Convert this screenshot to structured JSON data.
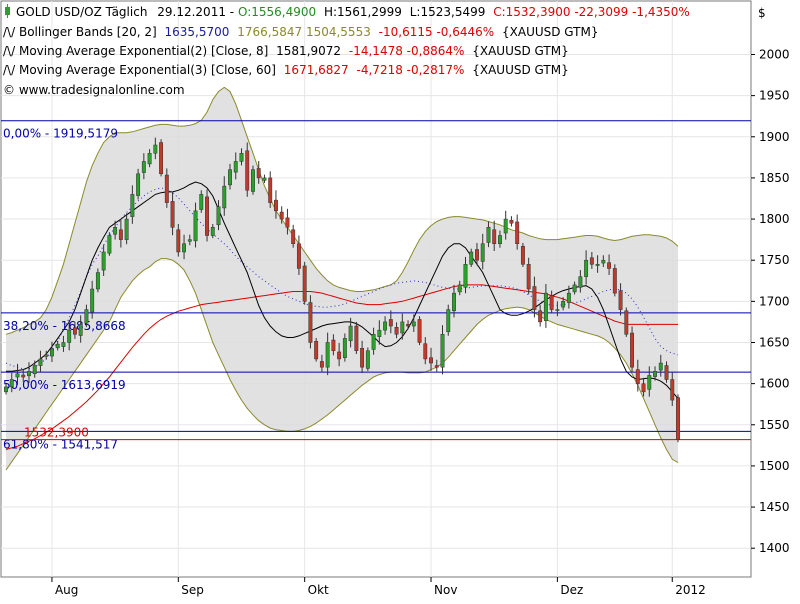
{
  "header": {
    "line1": {
      "symbol": "GOLD USD/OZ Täglich",
      "date": "29.12.2011",
      "open": "O:1556,4900",
      "high": "H:1561,2999",
      "low": "L:1523,5499",
      "close": "C:1532,3900 -22,3099 -1,4350%"
    },
    "line2": {
      "name": "Bollinger Bands [20, 2]",
      "mid": "1635,5700",
      "bands": "1766,5847 1504,5553",
      "change": "-10,6115 -0,6446%",
      "source": "{XAUUSD GTM}"
    },
    "line3": {
      "name": "Moving Average Exponential(2) [Close, 8]",
      "value": "1581,9072",
      "change": "-14,1478 -0,8864%",
      "source": "{XAUUSD GTM}"
    },
    "line4": {
      "name": "Moving Average Exponential(3) [Close, 60]",
      "value": "1671,6827",
      "change": "-4,7218 -0,2817%",
      "source": "{XAUUSD GTM}"
    },
    "watermark": "© www.tradesignalonline.com"
  },
  "colors": {
    "up": "#2ca02c",
    "down": "#c0392b",
    "band_fill": "#dcdcdc",
    "band_line": "#8a8a2a",
    "ema8": "#000000",
    "ema60": "#dd0000",
    "fib": "#0000aa",
    "close_line": "#dd0000",
    "header_green": "#228b22",
    "header_red": "#dd0000",
    "header_blue": "#1a1aa0"
  },
  "chart_data": {
    "type": "candlestick",
    "currency_label": "$",
    "ylim": [
      1365,
      2065
    ],
    "y_ticks": [
      1400,
      1450,
      1500,
      1550,
      1600,
      1650,
      1700,
      1750,
      1800,
      1850,
      1900,
      1950,
      2000
    ],
    "x_tick_labels": [
      "Aug",
      "Sep",
      "Okt",
      "Nov",
      "Dez",
      "2012"
    ],
    "x_tick_index": [
      8,
      30,
      52,
      74,
      96,
      116
    ],
    "x_count": 118,
    "fib_levels": [
      {
        "label": "0,00% - 1919,5179",
        "value": 1919.5
      },
      {
        "label": "38,20% - 1685,8668",
        "value": 1686
      },
      {
        "label": "50,00% - 1613,6919",
        "value": 1614
      },
      {
        "label": "61,80% - 1541,517",
        "value": 1542
      }
    ],
    "last_close_label": "1532,3900",
    "last_close": 1532,
    "close": [
      1596,
      1605,
      1612,
      1608,
      1615,
      1622,
      1630,
      1635,
      1642,
      1648,
      1650,
      1665,
      1660,
      1672,
      1690,
      1715,
      1735,
      1760,
      1780,
      1790,
      1775,
      1800,
      1830,
      1855,
      1870,
      1880,
      1890,
      1855,
      1820,
      1790,
      1760,
      1770,
      1775,
      1810,
      1830,
      1780,
      1790,
      1815,
      1840,
      1860,
      1870,
      1880,
      1835,
      1860,
      1850,
      1850,
      1820,
      1810,
      1800,
      1790,
      1770,
      1740,
      1700,
      1650,
      1630,
      1620,
      1650,
      1640,
      1630,
      1655,
      1670,
      1640,
      1620,
      1640,
      1660,
      1665,
      1675,
      1670,
      1660,
      1675,
      1670,
      1675,
      1650,
      1630,
      1625,
      1620,
      1660,
      1690,
      1710,
      1720,
      1745,
      1760,
      1750,
      1770,
      1790,
      1770,
      1780,
      1800,
      1795,
      1770,
      1745,
      1715,
      1690,
      1675,
      1710,
      1690,
      1690,
      1700,
      1710,
      1720,
      1730,
      1750,
      1745,
      1745,
      1750,
      1740,
      1710,
      1690,
      1660,
      1620,
      1600,
      1590,
      1610,
      1615,
      1625,
      1605,
      1580,
      1532
    ],
    "bb_mid": [
      1625,
      1622,
      1620,
      1618,
      1618,
      1620,
      1625,
      1630,
      1640,
      1652,
      1665,
      1680,
      1695,
      1712,
      1730,
      1745,
      1755,
      1768,
      1780,
      1790,
      1800,
      1808,
      1815,
      1822,
      1828,
      1833,
      1836,
      1838,
      1836,
      1832,
      1826,
      1818,
      1810,
      1802,
      1795,
      1788,
      1782,
      1776,
      1770,
      1763,
      1755,
      1748,
      1742,
      1736,
      1730,
      1725,
      1720,
      1715,
      1710,
      1706,
      1703,
      1700,
      1697,
      1695,
      1694,
      1693,
      1693,
      1694,
      1695,
      1697,
      1700,
      1703,
      1706,
      1709,
      1712,
      1715,
      1718,
      1720,
      1722,
      1723,
      1724,
      1725,
      1724,
      1723,
      1721,
      1719,
      1717,
      1716,
      1715,
      1715,
      1716,
      1717,
      1718,
      1719,
      1719,
      1719,
      1719,
      1718,
      1717,
      1715,
      1712,
      1708,
      1704,
      1700,
      1697,
      1695,
      1695,
      1696,
      1697,
      1698,
      1700,
      1703,
      1706,
      1709,
      1712,
      1714,
      1715,
      1714,
      1710,
      1703,
      1693,
      1681,
      1668,
      1655,
      1645,
      1640,
      1637,
      1635
    ],
    "bb_upper": [
      1660,
      1662,
      1665,
      1668,
      1672,
      1675,
      1680,
      1690,
      1705,
      1725,
      1745,
      1770,
      1795,
      1820,
      1845,
      1865,
      1880,
      1893,
      1900,
      1905,
      1905,
      1905,
      1906,
      1908,
      1910,
      1912,
      1914,
      1915,
      1915,
      1914,
      1913,
      1913,
      1914,
      1916,
      1920,
      1930,
      1945,
      1955,
      1960,
      1955,
      1940,
      1920,
      1900,
      1880,
      1860,
      1840,
      1825,
      1810,
      1800,
      1790,
      1780,
      1770,
      1760,
      1750,
      1740,
      1732,
      1725,
      1720,
      1717,
      1715,
      1713,
      1712,
      1712,
      1713,
      1714,
      1716,
      1718,
      1720,
      1725,
      1735,
      1748,
      1762,
      1775,
      1785,
      1792,
      1797,
      1800,
      1802,
      1803,
      1803,
      1802,
      1801,
      1800,
      1799,
      1797,
      1795,
      1793,
      1790,
      1787,
      1785,
      1783,
      1780,
      1778,
      1776,
      1775,
      1775,
      1775,
      1776,
      1777,
      1778,
      1779,
      1780,
      1780,
      1779,
      1777,
      1775,
      1774,
      1775,
      1777,
      1779,
      1780,
      1781,
      1781,
      1780,
      1779,
      1777,
      1773,
      1767
    ],
    "bb_lower": [
      1495,
      1505,
      1515,
      1525,
      1535,
      1545,
      1555,
      1565,
      1575,
      1585,
      1595,
      1605,
      1615,
      1625,
      1635,
      1645,
      1655,
      1665,
      1675,
      1690,
      1705,
      1715,
      1725,
      1732,
      1738,
      1742,
      1748,
      1752,
      1752,
      1750,
      1745,
      1738,
      1725,
      1710,
      1690,
      1670,
      1650,
      1635,
      1620,
      1605,
      1592,
      1580,
      1570,
      1562,
      1555,
      1550,
      1546,
      1544,
      1543,
      1542,
      1542,
      1543,
      1545,
      1548,
      1552,
      1557,
      1562,
      1568,
      1574,
      1580,
      1586,
      1592,
      1598,
      1603,
      1608,
      1611,
      1613,
      1614,
      1614,
      1614,
      1613,
      1613,
      1613,
      1614,
      1617,
      1620,
      1625,
      1632,
      1640,
      1648,
      1656,
      1664,
      1672,
      1678,
      1683,
      1686,
      1689,
      1691,
      1692,
      1693,
      1692,
      1690,
      1686,
      1682,
      1678,
      1675,
      1672,
      1670,
      1668,
      1666,
      1664,
      1662,
      1660,
      1658,
      1655,
      1650,
      1643,
      1635,
      1625,
      1612,
      1598,
      1582,
      1566,
      1550,
      1534,
      1520,
      1508,
      1504
    ],
    "ema8": [
      1615,
      1615,
      1616,
      1617,
      1620,
      1625,
      1630,
      1636,
      1645,
      1655,
      1665,
      1675,
      1690,
      1710,
      1730,
      1750,
      1765,
      1778,
      1790,
      1795,
      1800,
      1805,
      1810,
      1815,
      1820,
      1825,
      1830,
      1832,
      1833,
      1833,
      1835,
      1838,
      1842,
      1845,
      1843,
      1838,
      1828,
      1812,
      1795,
      1780,
      1765,
      1750,
      1735,
      1715,
      1695,
      1680,
      1670,
      1663,
      1658,
      1656,
      1656,
      1658,
      1661,
      1664,
      1667,
      1670,
      1672,
      1673,
      1674,
      1675,
      1675,
      1673,
      1669,
      1663,
      1657,
      1650,
      1645,
      1646,
      1650,
      1657,
      1667,
      1680,
      1695,
      1710,
      1725,
      1740,
      1755,
      1765,
      1770,
      1770,
      1765,
      1755,
      1745,
      1735,
      1720,
      1705,
      1690,
      1685,
      1683,
      1683,
      1685,
      1688,
      1692,
      1697,
      1702,
      1706,
      1710,
      1713,
      1715,
      1717,
      1718,
      1719,
      1715,
      1705,
      1690,
      1670,
      1650,
      1630,
      1615,
      1608,
      1605,
      1606,
      1607,
      1606,
      1603,
      1598,
      1590,
      1582
    ],
    "ema60": [
      1520,
      1522,
      1524,
      1527,
      1530,
      1533,
      1537,
      1541,
      1545,
      1550,
      1555,
      1560,
      1566,
      1572,
      1578,
      1585,
      1592,
      1600,
      1608,
      1617,
      1626,
      1635,
      1644,
      1652,
      1660,
      1667,
      1673,
      1678,
      1682,
      1685,
      1688,
      1690,
      1692,
      1694,
      1696,
      1697,
      1698,
      1699,
      1700,
      1701,
      1702,
      1703,
      1704,
      1705,
      1706,
      1707,
      1708,
      1709,
      1710,
      1711,
      1712,
      1712,
      1712,
      1712,
      1711,
      1710,
      1708,
      1706,
      1704,
      1702,
      1700,
      1698,
      1697,
      1696,
      1696,
      1696,
      1697,
      1698,
      1699,
      1700,
      1702,
      1704,
      1706,
      1708,
      1710,
      1712,
      1714,
      1716,
      1718,
      1719,
      1720,
      1720,
      1720,
      1720,
      1719,
      1718,
      1717,
      1716,
      1715,
      1714,
      1713,
      1712,
      1711,
      1710,
      1709,
      1707,
      1705,
      1703,
      1700,
      1697,
      1694,
      1691,
      1688,
      1685,
      1682,
      1679,
      1676,
      1674,
      1672,
      1672,
      1672,
      1672,
      1672,
      1672,
      1672,
      1672,
      1672,
      1672
    ]
  }
}
